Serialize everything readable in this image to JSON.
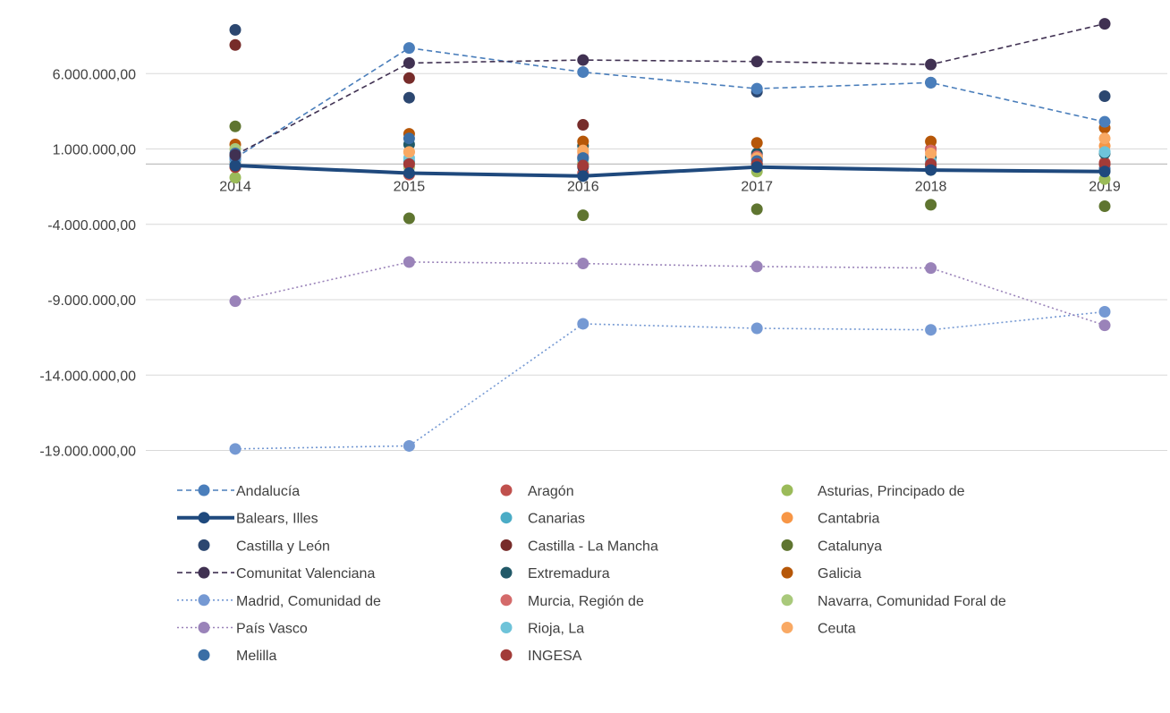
{
  "chart_data": {
    "type": "line",
    "x": [
      "2014",
      "2015",
      "2016",
      "2017",
      "2018",
      "2019"
    ],
    "ylim": [
      -19000000,
      9000000
    ],
    "yticks": [
      6000000,
      1000000,
      -4000000,
      -9000000,
      -14000000,
      -19000000
    ],
    "ytick_labels": [
      "6.000.000,00",
      "1.000.000,00",
      "-4.000.000,00",
      "-9.000.000,00",
      "-14.000.000,00",
      "-19.000.000,00"
    ],
    "grid": true,
    "legend_position": "bottom",
    "series": [
      {
        "name": "Andalucía",
        "color": "#4a7ebb",
        "line": "dashed",
        "values": [
          400000,
          7700000,
          6100000,
          5000000,
          5400000,
          2800000
        ]
      },
      {
        "name": "Aragón",
        "color": "#c0504d",
        "line": "none",
        "values": [
          100000,
          -700000,
          -600000,
          300000,
          1000000,
          100000
        ]
      },
      {
        "name": "Asturias, Principado de",
        "color": "#9bbb59",
        "line": "none",
        "values": [
          -900000,
          100000,
          100000,
          -500000,
          -400000,
          -1000000
        ]
      },
      {
        "name": "Balears, Illes",
        "color": "#1f497d",
        "line": "thick",
        "values": [
          -100000,
          -600000,
          -800000,
          -200000,
          -400000,
          -500000
        ]
      },
      {
        "name": "Canarias",
        "color": "#4bacc6",
        "line": "none",
        "values": [
          300000,
          200000,
          400000,
          500000,
          500000,
          800000
        ]
      },
      {
        "name": "Cantabria",
        "color": "#f79646",
        "line": "none",
        "values": [
          600000,
          800000,
          800000,
          600000,
          400000,
          1200000
        ]
      },
      {
        "name": "Castilla y León",
        "color": "#2c4770",
        "line": "none",
        "values": [
          8900000,
          4400000,
          -200000,
          4800000,
          5400000,
          4500000
        ]
      },
      {
        "name": "Castilla - La Mancha",
        "color": "#772c2a",
        "line": "none",
        "values": [
          7900000,
          5700000,
          2600000,
          0,
          -100000,
          0
        ]
      },
      {
        "name": "Catalunya",
        "color": "#5f7530",
        "line": "none",
        "values": [
          2500000,
          -3600000,
          -3400000,
          -3000000,
          -2700000,
          -2800000
        ]
      },
      {
        "name": "Comunitat Valenciana",
        "color": "#403152",
        "line": "dashed",
        "values": [
          600000,
          6700000,
          6900000,
          6800000,
          6600000,
          9300000
        ]
      },
      {
        "name": "Extremadura",
        "color": "#215968",
        "line": "none",
        "values": [
          500000,
          1300000,
          1200000,
          700000,
          400000,
          700000
        ]
      },
      {
        "name": "Galicia",
        "color": "#b65708",
        "line": "none",
        "values": [
          1300000,
          2000000,
          1500000,
          1400000,
          1500000,
          2400000
        ]
      },
      {
        "name": "Madrid, Comunidad de",
        "color": "#7599d3",
        "line": "dotted",
        "values": [
          -18900000,
          -18700000,
          -10600000,
          -10900000,
          -11000000,
          -9800000
        ]
      },
      {
        "name": "Murcia, Región de",
        "color": "#d46a6a",
        "line": "none",
        "values": [
          -200000,
          -200000,
          500000,
          500000,
          900000,
          0
        ]
      },
      {
        "name": "Navarra, Comunidad Foral de",
        "color": "#a9c97b",
        "line": "none",
        "values": [
          1000000,
          -200000,
          0,
          0,
          -100000,
          -400000
        ]
      },
      {
        "name": "País Vasco",
        "color": "#9a83b9",
        "line": "dotted",
        "values": [
          -9100000,
          -6500000,
          -6600000,
          -6800000,
          -6900000,
          -10700000
        ]
      },
      {
        "name": "Rioja, La",
        "color": "#6ec3d9",
        "line": "none",
        "values": [
          0,
          400000,
          300000,
          200000,
          200000,
          800000
        ]
      },
      {
        "name": "Ceuta",
        "color": "#f9a964",
        "line": "none",
        "values": [
          700000,
          800000,
          900000,
          400000,
          700000,
          1700000
        ]
      },
      {
        "name": "Melilla",
        "color": "#3a6ea5",
        "line": "none",
        "values": [
          700000,
          1700000,
          400000,
          200000,
          -200000,
          -300000
        ]
      },
      {
        "name": "INGESA",
        "color": "#a23b38",
        "line": "none",
        "values": [
          -200000,
          0,
          -100000,
          0,
          0,
          0
        ]
      }
    ]
  }
}
